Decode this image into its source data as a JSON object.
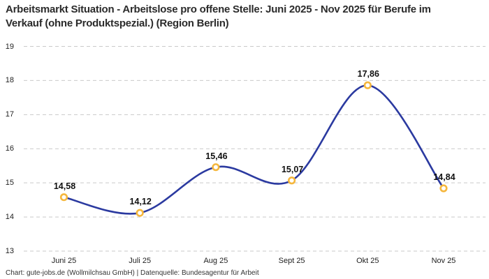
{
  "header": {
    "title": "Arbeitsmarkt Situation - Arbeitslose pro offene Stelle: Juni 2025 - Nov 2025 für Berufe im Verkauf (ohne Produktspezial.) (Region Berlin)"
  },
  "footer": {
    "attribution": "Chart: gute-jobs.de (Wollmilchsau GmbH) | Datenquelle: Bundesagentur für Arbeit"
  },
  "chart_data": {
    "type": "line",
    "title": "Arbeitsmarkt Situation - Arbeitslose pro offene Stelle: Juni 2025 - Nov 2025 für Berufe im Verkauf (ohne Produktspezial.) (Region Berlin)",
    "categories": [
      "Juni 25",
      "Juli 25",
      "Aug 25",
      "Sept 25",
      "Okt 25",
      "Nov 25"
    ],
    "values": [
      14.58,
      14.12,
      15.46,
      15.07,
      17.86,
      14.84
    ],
    "value_labels": [
      "14,58",
      "14,12",
      "15,46",
      "15,07",
      "17,86",
      "14,84"
    ],
    "y_ticks": [
      "19",
      "18",
      "17",
      "16",
      "15",
      "14",
      "13"
    ],
    "ylim": [
      13,
      19
    ],
    "xlabel": "",
    "ylabel": "",
    "grid": "horizontal-dashed",
    "legend": "none",
    "line_smooth": true,
    "colors": {
      "line": "#2b3aa0",
      "marker_ring": "#f5b73d",
      "marker_fill": "#ffffff",
      "grid": "#c9c9c9",
      "title_text": "#2b2b2b",
      "tick_text": "#222222",
      "value_label_text": "#111111",
      "footer_text": "#333333",
      "background": "#ffffff"
    }
  }
}
